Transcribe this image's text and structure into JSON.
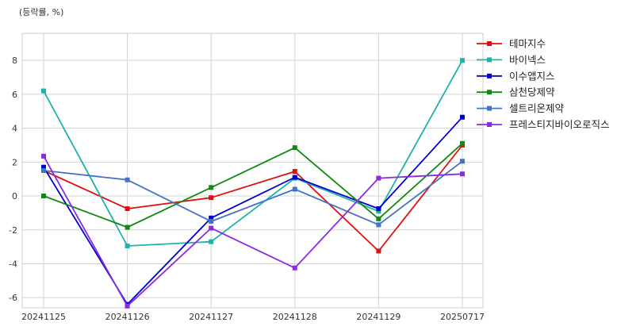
{
  "chart_data": {
    "type": "line",
    "unit_label": "(등락률, %)",
    "categories": [
      "20241125",
      "20241126",
      "20241127",
      "20241128",
      "20241129",
      "20250717"
    ],
    "ylim": [
      -6.6,
      9.6
    ],
    "yticks": [
      -6,
      -4,
      -2,
      0,
      2,
      4,
      6,
      8
    ],
    "grid": true,
    "legend_position": "right",
    "series": [
      {
        "name": "테마지수",
        "color": "#dd1111",
        "values": [
          1.5,
          -0.75,
          -0.1,
          1.45,
          -3.25,
          3.0
        ]
      },
      {
        "name": "바이넥스",
        "color": "#20b2aa",
        "values": [
          6.2,
          -2.95,
          -2.7,
          1.05,
          -0.9,
          8.0
        ]
      },
      {
        "name": "이수앱지스",
        "color": "#0000cc",
        "values": [
          1.7,
          -6.4,
          -1.3,
          1.1,
          -0.75,
          4.65
        ]
      },
      {
        "name": "삼천당제약",
        "color": "#118811",
        "values": [
          0.0,
          -1.85,
          0.5,
          2.85,
          -1.35,
          3.1
        ]
      },
      {
        "name": "셀트리온제약",
        "color": "#4472c4",
        "values": [
          1.5,
          0.95,
          -1.5,
          0.4,
          -1.7,
          2.05
        ]
      },
      {
        "name": "프레스티지바이오로직스",
        "color": "#8a2be2",
        "values": [
          2.35,
          -6.5,
          -1.9,
          -4.25,
          1.05,
          1.3
        ]
      }
    ]
  }
}
